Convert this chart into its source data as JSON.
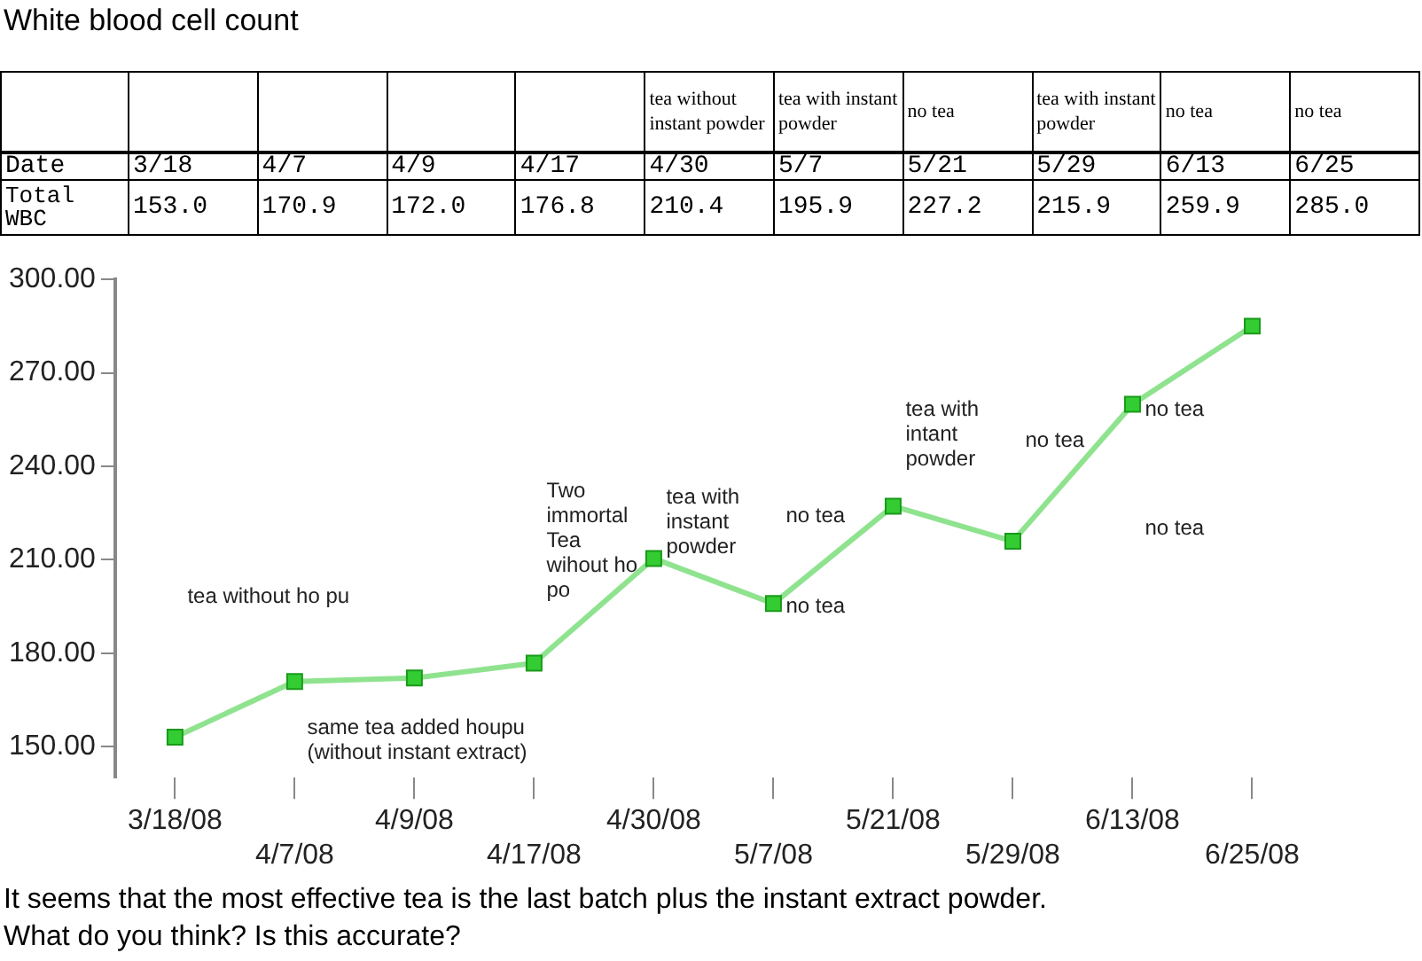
{
  "chart_data": {
    "type": "line",
    "title": "White blood cell count",
    "categories": [
      "3/18/08",
      "4/7/08",
      "4/9/08",
      "4/17/08",
      "4/30/08",
      "5/7/08",
      "5/21/08",
      "5/29/08",
      "6/13/08",
      "6/25/08"
    ],
    "series": [
      {
        "color": "#33cc33",
        "values": [
          153.0,
          170.9,
          172.0,
          176.8,
          210.4,
          195.9,
          227.2,
          215.9,
          259.9,
          285.0
        ]
      }
    ],
    "ylim": [
      140,
      300
    ],
    "yticks": [
      {
        "value": 150,
        "label": "150.00"
      },
      {
        "value": 180,
        "label": "180.00"
      },
      {
        "value": 210,
        "label": "210.00"
      },
      {
        "value": 240,
        "label": "240.00"
      },
      {
        "value": 270,
        "label": "270.00"
      },
      {
        "value": 300,
        "label": "300.00"
      }
    ],
    "grid": false,
    "legend": false,
    "marker": "square",
    "line_style": "solid",
    "annotations": [
      "tea without instant powder",
      "tea with instant powder",
      "no tea",
      "tea with instant powder",
      "no tea",
      "no tea",
      "Date",
      "3/18",
      "4/7",
      "4/9",
      "4/17",
      "4/30",
      "5/7",
      "5/21",
      "5/29",
      "6/13",
      "6/25",
      "Total WBC",
      "153.0",
      "170.9",
      "172.0",
      "176.8",
      "210.4",
      "195.9",
      "227.2",
      "215.9",
      "259.9",
      "285.0",
      "tea without ho pu",
      "same tea added houpu (without instant extract)",
      "Two immortal Tea wihout ho po",
      "tea with instant powder",
      "no tea",
      "no tea",
      "tea with intant powder",
      "no tea",
      "no tea",
      "no tea",
      "It seems that the most effective tea is the last batch plus the instant extract powder.",
      "What do you think? Is this accurate?"
    ]
  }
}
